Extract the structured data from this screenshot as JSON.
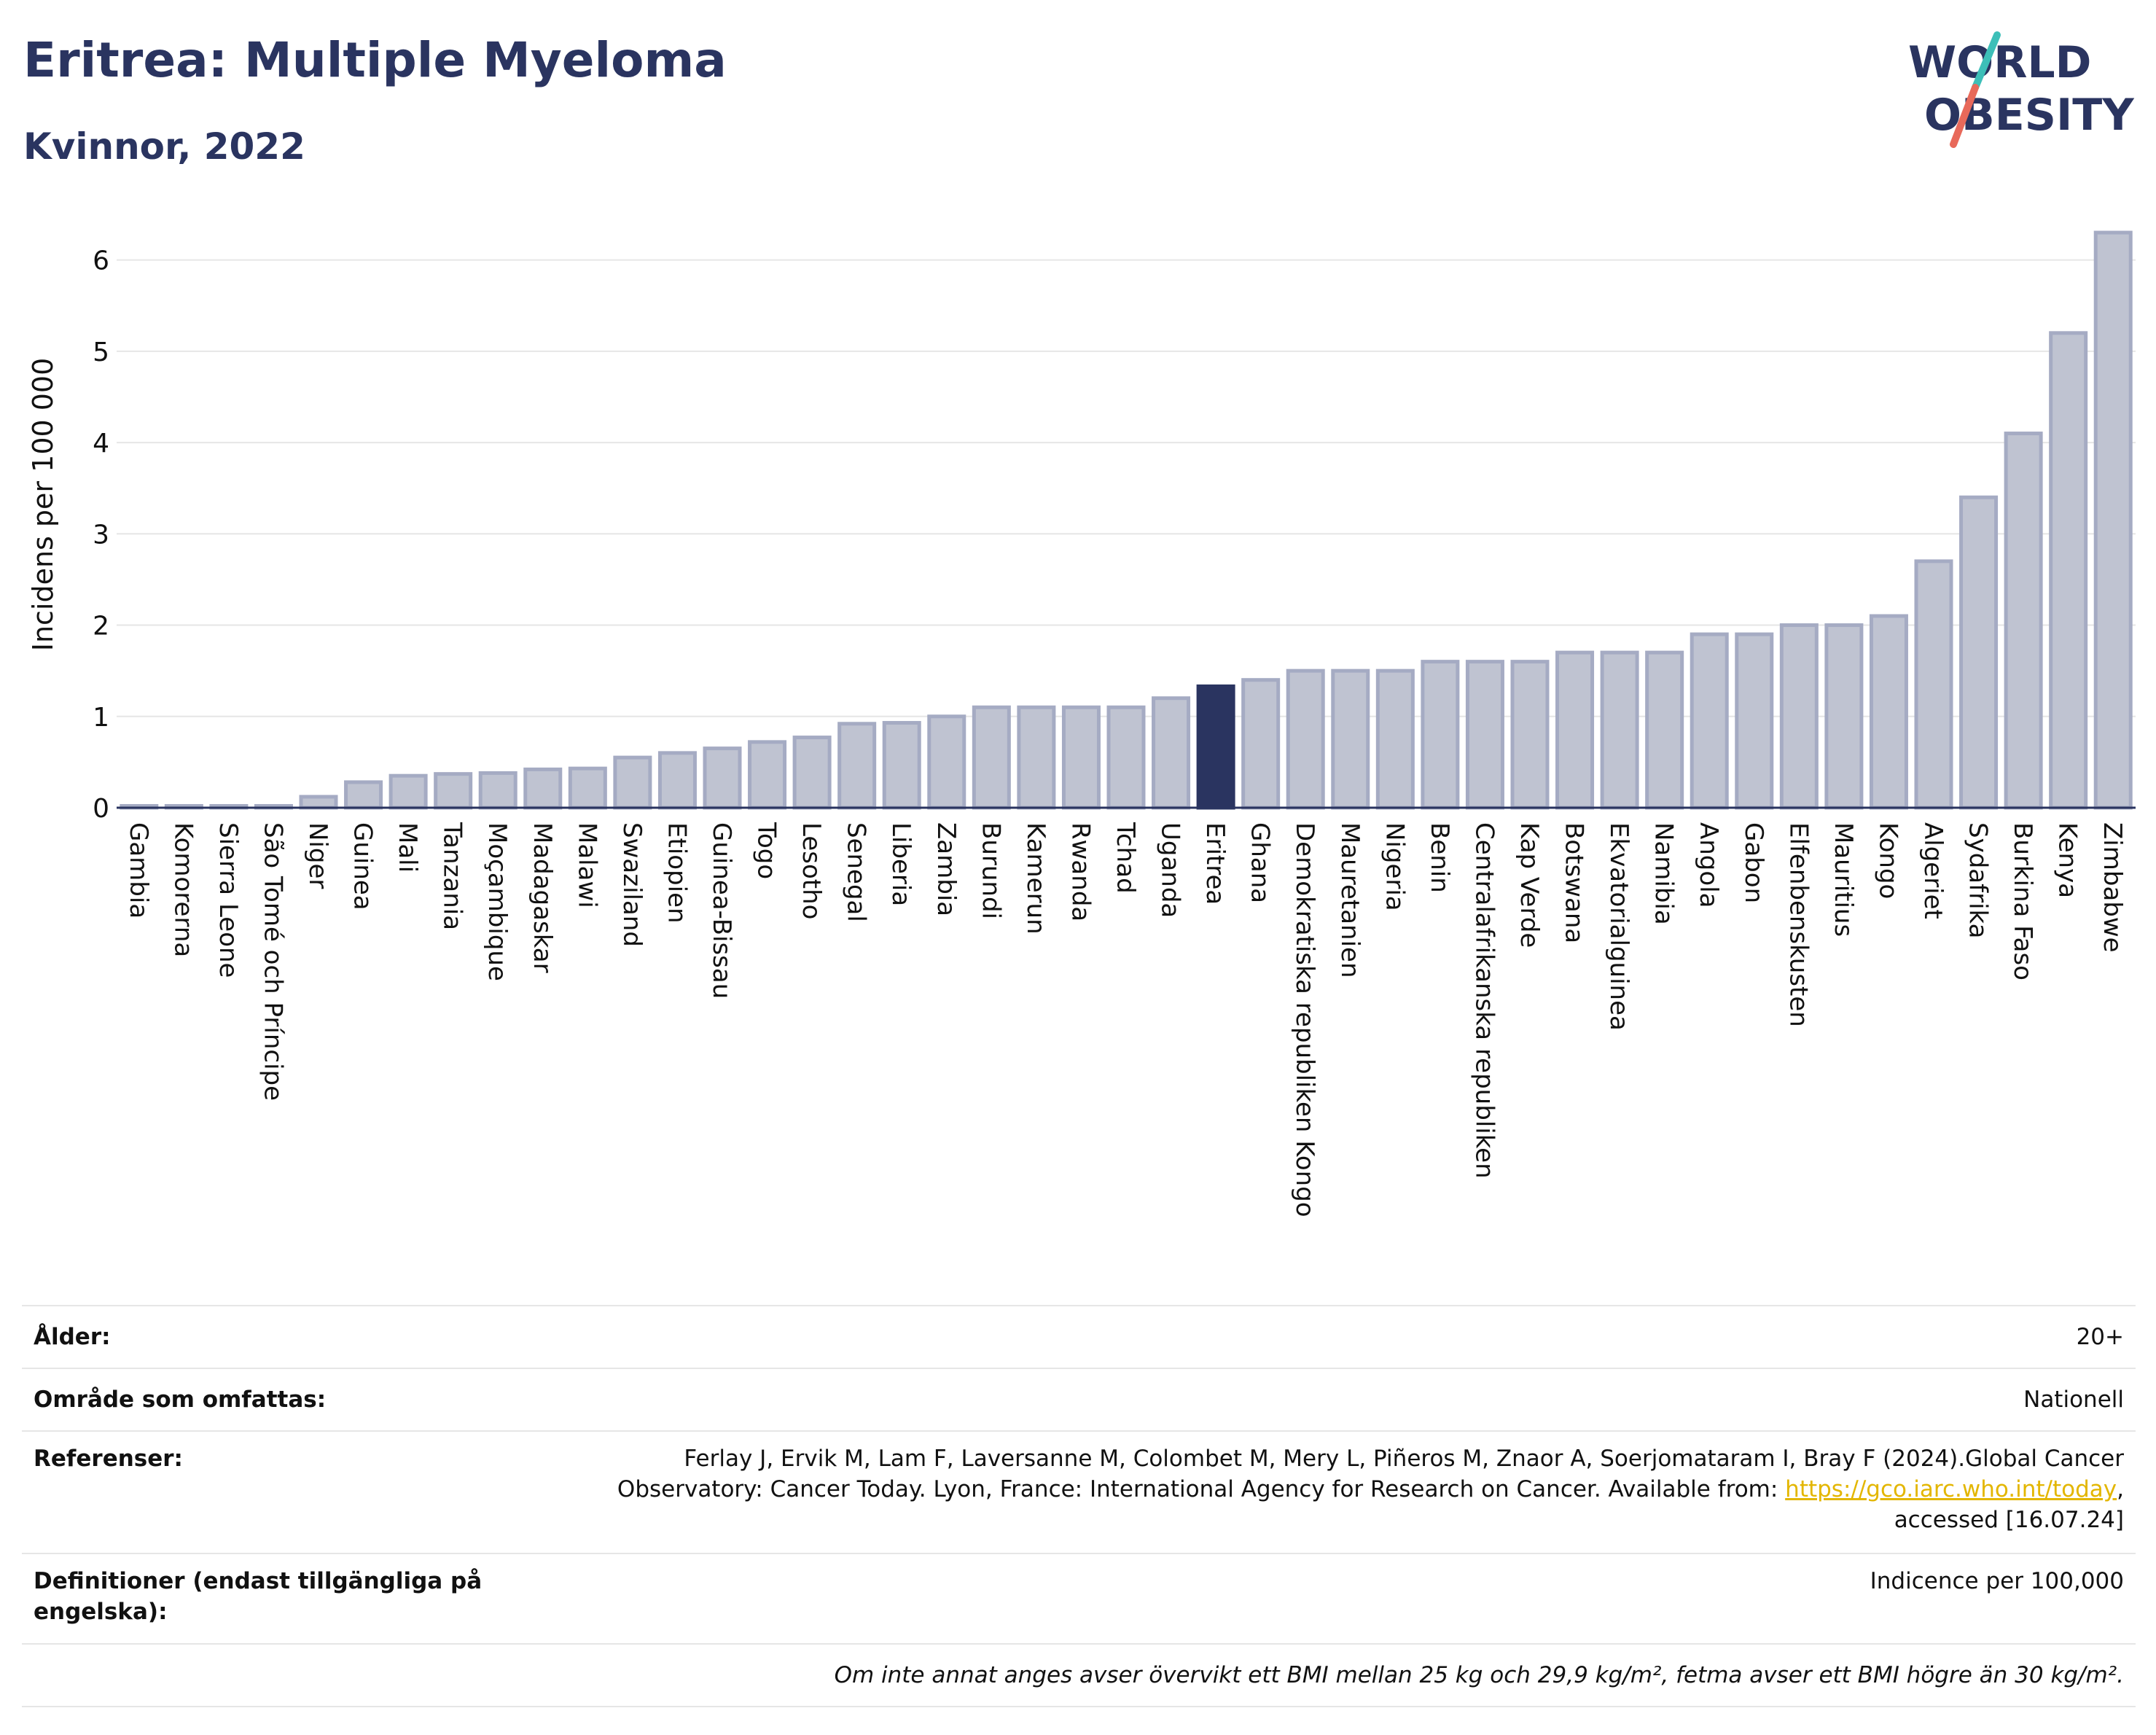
{
  "header": {
    "title": "Eritrea: Multiple Myeloma",
    "subtitle": "Kvinnor, 2022"
  },
  "logo": {
    "line1": "WORLD",
    "line2": "OBESITY",
    "colors": {
      "text": "#2a3460",
      "slash_teal": "#3dbfb8",
      "slash_red": "#e8695a"
    }
  },
  "chart_data": {
    "type": "bar",
    "ylabel": "Incidens per 100 000",
    "ylim": [
      0,
      6.5
    ],
    "yticks": [
      0,
      1,
      2,
      3,
      4,
      5,
      6
    ],
    "grid": true,
    "highlight": "Eritrea",
    "colors": {
      "bar": "#bfc3d1",
      "bar_edge": "#a5abc3",
      "highlight": "#2a3460",
      "grid": "#e6e6e6",
      "axis": "#2a3460"
    },
    "categories": [
      "Gambia",
      "Komorerna",
      "Sierra Leone",
      "São Tomé och Príncipe",
      "Niger",
      "Guinea",
      "Mali",
      "Tanzania",
      "Moçambique",
      "Madagaskar",
      "Malawi",
      "Swaziland",
      "Etiopien",
      "Guinea-Bissau",
      "Togo",
      "Lesotho",
      "Senegal",
      "Liberia",
      "Zambia",
      "Burundi",
      "Kamerun",
      "Rwanda",
      "Tchad",
      "Uganda",
      "Eritrea",
      "Ghana",
      "Demokratiska republiken Kongo",
      "Mauretanien",
      "Nigeria",
      "Benin",
      "Centralafrikanska republiken",
      "Kap Verde",
      "Botswana",
      "Ekvatorialguinea",
      "Namibia",
      "Angola",
      "Gabon",
      "Elfenbenskusten",
      "Mauritius",
      "Kongo",
      "Algeriet",
      "Sydafrika",
      "Burkina Faso",
      "Kenya",
      "Zimbabwe"
    ],
    "values": [
      0.02,
      0.02,
      0.02,
      0.02,
      0.12,
      0.28,
      0.35,
      0.37,
      0.38,
      0.42,
      0.43,
      0.55,
      0.6,
      0.65,
      0.72,
      0.77,
      0.92,
      0.93,
      1.0,
      1.1,
      1.1,
      1.1,
      1.1,
      1.2,
      1.33,
      1.4,
      1.5,
      1.5,
      1.5,
      1.6,
      1.6,
      1.6,
      1.7,
      1.7,
      1.7,
      1.9,
      1.9,
      2.0,
      2.0,
      2.1,
      2.7,
      3.4,
      4.1,
      5.2,
      6.3
    ]
  },
  "info": {
    "age_label": "Ålder:",
    "age_value": "20+",
    "area_label": "Område som omfattas:",
    "area_value": "Nationell",
    "ref_label": "Referenser:",
    "ref_text_1": "Ferlay J, Ervik M, Lam F, Laversanne M, Colombet M, Mery L, Piñeros M, Znaor A, Soerjomataram I, Bray F (2024).Global Cancer",
    "ref_text_2": "Observatory: Cancer Today. Lyon, France: International Agency for Research on Cancer. Available from: ",
    "ref_link": "https://gco.iarc.who.int/today",
    "ref_text_3": ",",
    "ref_text_4": "accessed [16.07.24]",
    "def_label": "Definitioner (endast tillgängliga på engelska):",
    "def_value": "Indicence per 100,000",
    "note": "Om inte annat anges avser övervikt ett BMI mellan 25 kg och 29,9 kg/m², fetma avser ett BMI högre än 30 kg/m²."
  }
}
